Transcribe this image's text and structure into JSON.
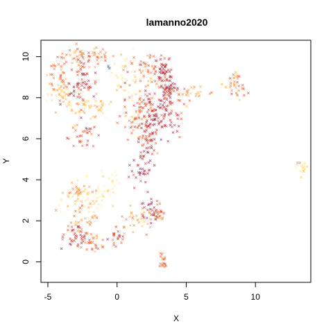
{
  "chart_data": {
    "type": "scatter",
    "title": "lamanno2020",
    "xlabel": "X",
    "ylabel": "Y",
    "xlim": [
      -5.5,
      14
    ],
    "ylim": [
      -1,
      10.8
    ],
    "xticks": [
      -5,
      0,
      5,
      10
    ],
    "yticks": [
      0,
      2,
      4,
      6,
      8,
      10
    ],
    "grid": false,
    "legend": "none",
    "palette": [
      "#fff3b0",
      "#ffe08a",
      "#fec45c",
      "#fca44a",
      "#f47a38",
      "#e45a35",
      "#d03a3a",
      "#b62446",
      "#8c2358",
      "#5b8fb8"
    ],
    "clusters": [
      {
        "cx": -2.3,
        "cy": 10.0,
        "sx": 1.0,
        "sy": 0.25,
        "n": 60,
        "level": 4
      },
      {
        "cx": -4.2,
        "cy": 9.0,
        "sx": 0.35,
        "sy": 0.5,
        "n": 40,
        "level": 4
      },
      {
        "cx": -3.8,
        "cy": 8.2,
        "sx": 0.6,
        "sy": 0.4,
        "n": 40,
        "level": 2
      },
      {
        "cx": -2.4,
        "cy": 8.6,
        "sx": 0.5,
        "sy": 0.6,
        "n": 60,
        "level": 6
      },
      {
        "cx": -2.0,
        "cy": 7.6,
        "sx": 0.8,
        "sy": 0.3,
        "n": 50,
        "level": 2
      },
      {
        "cx": -2.6,
        "cy": 6.1,
        "sx": 0.6,
        "sy": 0.3,
        "n": 30,
        "level": 5
      },
      {
        "cx": -0.6,
        "cy": 9.5,
        "sx": 0.1,
        "sy": 0.05,
        "n": 4,
        "level": 9
      },
      {
        "cx": 0.5,
        "cy": 9.2,
        "sx": 0.6,
        "sy": 0.6,
        "n": 40,
        "level": 1
      },
      {
        "cx": 2.0,
        "cy": 9.5,
        "sx": 0.6,
        "sy": 0.4,
        "n": 40,
        "level": 4
      },
      {
        "cx": 3.3,
        "cy": 9.4,
        "sx": 0.3,
        "sy": 0.35,
        "n": 40,
        "level": 6
      },
      {
        "cx": 3.7,
        "cy": 8.5,
        "sx": 0.4,
        "sy": 0.4,
        "n": 50,
        "level": 7
      },
      {
        "cx": 2.5,
        "cy": 7.6,
        "sx": 1.0,
        "sy": 0.7,
        "n": 120,
        "level": 5
      },
      {
        "cx": 3.0,
        "cy": 7.0,
        "sx": 0.8,
        "sy": 0.5,
        "n": 60,
        "level": 7
      },
      {
        "cx": 1.4,
        "cy": 6.9,
        "sx": 0.4,
        "sy": 0.5,
        "n": 30,
        "level": 4
      },
      {
        "cx": 5.4,
        "cy": 8.2,
        "sx": 0.8,
        "sy": 0.2,
        "n": 30,
        "level": 3
      },
      {
        "cx": 8.7,
        "cy": 8.6,
        "sx": 0.3,
        "sy": 0.35,
        "n": 35,
        "level": 4
      },
      {
        "cx": 8.6,
        "cy": 9.2,
        "sx": 0.2,
        "sy": 0.08,
        "n": 5,
        "level": 0
      },
      {
        "cx": 2.2,
        "cy": 5.8,
        "sx": 0.3,
        "sy": 0.4,
        "n": 30,
        "level": 6
      },
      {
        "cx": 1.8,
        "cy": 4.6,
        "sx": 0.4,
        "sy": 0.5,
        "n": 40,
        "level": 7
      },
      {
        "cx": 13.3,
        "cy": 4.6,
        "sx": 0.25,
        "sy": 0.2,
        "n": 20,
        "level": 1
      },
      {
        "cx": -1.8,
        "cy": 3.0,
        "sx": 0.9,
        "sy": 0.4,
        "n": 60,
        "level": 1
      },
      {
        "cx": -2.8,
        "cy": 3.4,
        "sx": 0.5,
        "sy": 0.2,
        "n": 25,
        "level": 3
      },
      {
        "cx": -0.6,
        "cy": 3.8,
        "sx": 0.3,
        "sy": 0.3,
        "n": 20,
        "level": 0
      },
      {
        "cx": -2.6,
        "cy": 2.0,
        "sx": 0.6,
        "sy": 0.4,
        "n": 40,
        "level": 4
      },
      {
        "cx": -3.0,
        "cy": 1.1,
        "sx": 0.4,
        "sy": 0.3,
        "n": 30,
        "level": 6
      },
      {
        "cx": -1.8,
        "cy": 0.8,
        "sx": 0.6,
        "sy": 0.2,
        "n": 30,
        "level": 4
      },
      {
        "cx": -0.1,
        "cy": 1.3,
        "sx": 0.3,
        "sy": 0.2,
        "n": 20,
        "level": 5
      },
      {
        "cx": 1.5,
        "cy": 2.1,
        "sx": 0.6,
        "sy": 0.3,
        "n": 30,
        "level": 3
      },
      {
        "cx": 2.5,
        "cy": 2.5,
        "sx": 0.4,
        "sy": 0.25,
        "n": 30,
        "level": 7
      },
      {
        "cx": 3.1,
        "cy": 2.3,
        "sx": 0.2,
        "sy": 0.25,
        "n": 20,
        "level": 4
      },
      {
        "cx": 3.3,
        "cy": 0.1,
        "sx": 0.2,
        "sy": 0.3,
        "n": 20,
        "level": 4
      }
    ]
  }
}
